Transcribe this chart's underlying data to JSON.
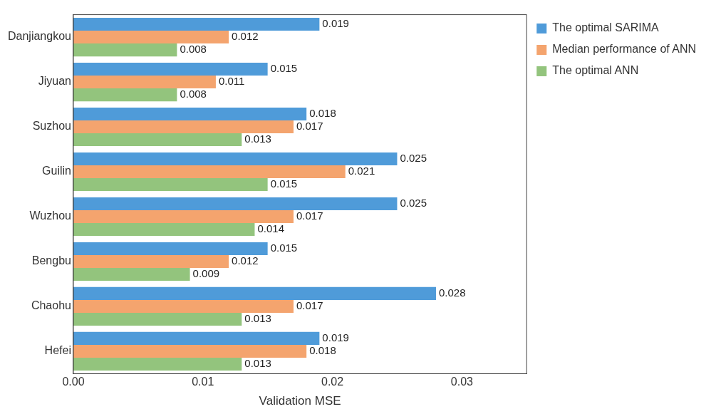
{
  "chart_data": {
    "type": "bar",
    "orientation": "horizontal",
    "xlabel": "Validation MSE",
    "categories": [
      "Danjiangkou",
      "Jiyuan",
      "Suzhou",
      "Guilin",
      "Wuzhou",
      "Bengbu",
      "Chaohu",
      "Hefei"
    ],
    "series": [
      {
        "name": "The optimal SARIMA",
        "color": "#4f9bd9",
        "values": [
          0.019,
          0.015,
          0.018,
          0.025,
          0.025,
          0.015,
          0.028,
          0.019
        ]
      },
      {
        "name": "Median performance of ANN",
        "color": "#f4a46e",
        "values": [
          0.012,
          0.011,
          0.017,
          0.021,
          0.017,
          0.012,
          0.017,
          0.018
        ]
      },
      {
        "name": "The optimal ANN",
        "color": "#93c47d",
        "values": [
          0.008,
          0.008,
          0.013,
          0.015,
          0.014,
          0.009,
          0.013,
          0.013
        ]
      }
    ],
    "xlim": [
      0,
      0.035
    ],
    "xticks": [
      {
        "value": 0,
        "label": "0.00"
      },
      0.01,
      0.02,
      0.03
    ],
    "data_labels": true,
    "grid": false,
    "legend": "right"
  }
}
